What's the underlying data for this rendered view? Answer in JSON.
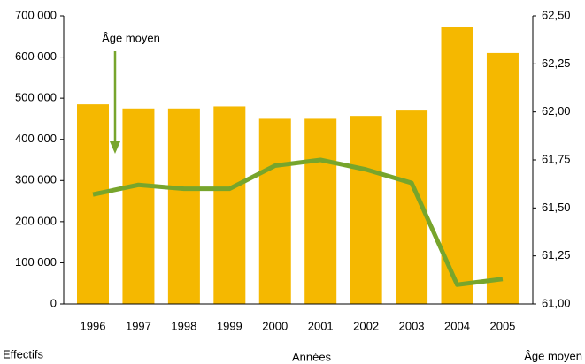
{
  "chart_data": {
    "type": "bar_line",
    "categories": [
      "1996",
      "1997",
      "1998",
      "1999",
      "2000",
      "2001",
      "2002",
      "2003",
      "2004",
      "2005"
    ],
    "series": [
      {
        "name": "Effectifs",
        "type": "bar",
        "color": "#f5b800",
        "values": [
          485000,
          475000,
          475000,
          480000,
          450000,
          450000,
          457000,
          470000,
          674000,
          610000
        ]
      },
      {
        "name": "Âge moyen",
        "type": "line",
        "axis": "y2",
        "color": "#77a52c",
        "values": [
          61.57,
          61.62,
          61.6,
          61.6,
          61.72,
          61.75,
          61.7,
          61.63,
          61.1,
          61.13
        ]
      }
    ],
    "ylabel": "Effectifs",
    "xlabel": "Années",
    "y2label": "Âge moyen",
    "annotation": "Âge moyen",
    "ylim": [
      0,
      700000
    ],
    "yticks": [
      0,
      {
        "value": 100000,
        "label": "100 000"
      },
      {
        "value": 200000,
        "label": "200 000"
      },
      {
        "value": 300000,
        "label": "300 000"
      },
      {
        "value": 400000,
        "label": "400 000"
      },
      {
        "value": 500000,
        "label": "500 000"
      },
      {
        "value": 600000,
        "label": "600 000"
      },
      {
        "value": 700000,
        "label": "700 000"
      }
    ],
    "y2lim": [
      61,
      62.5
    ],
    "y2ticks": [
      {
        "value": 61,
        "label": "61,00"
      },
      {
        "value": 61.25,
        "label": "61,25"
      },
      {
        "value": 61.5,
        "label": "61,50"
      },
      {
        "value": 61.75,
        "label": "61,75"
      },
      {
        "value": 62,
        "label": "62,00"
      },
      {
        "value": 62.25,
        "label": "62,25"
      },
      {
        "value": 62.5,
        "label": "62,50"
      }
    ],
    "grid": false
  }
}
